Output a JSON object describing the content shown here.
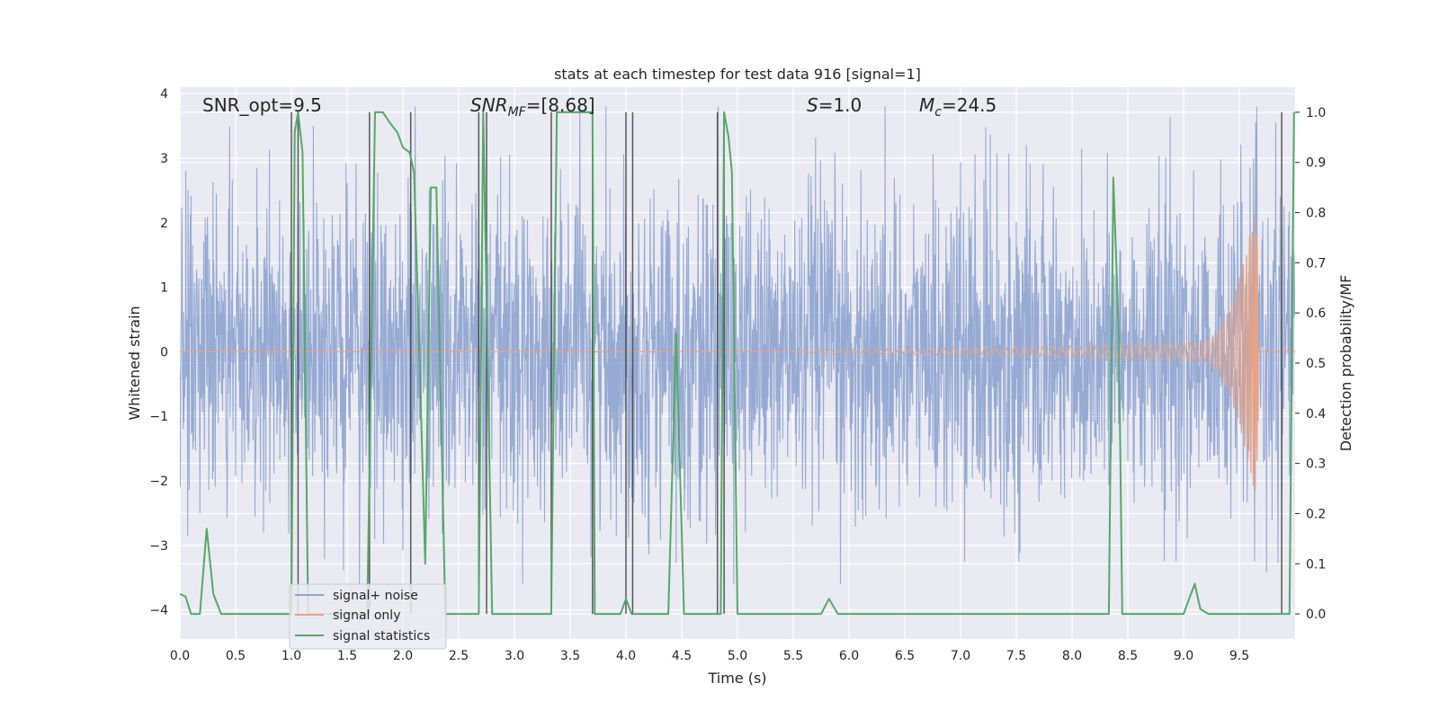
{
  "chart_data": {
    "type": "line",
    "title": "stats at each timestep for test data 916 [signal=1]",
    "xlabel": "Time (s)",
    "ylabel_left": "Whitened strain",
    "ylabel_right": "Detection probability/MF",
    "xlim": [
      0.0,
      10.0
    ],
    "ylim_left": [
      -4.45,
      4.1
    ],
    "ylim_right": [
      -0.05,
      1.05
    ],
    "x_ticks": [
      "0.0",
      "0.5",
      "1.0",
      "1.5",
      "2.0",
      "2.5",
      "3.0",
      "3.5",
      "4.0",
      "4.5",
      "5.0",
      "5.5",
      "6.0",
      "6.5",
      "7.0",
      "7.5",
      "8.0",
      "8.5",
      "9.0",
      "9.5"
    ],
    "y_ticks_left": [
      "4",
      "3",
      "2",
      "1",
      "0",
      "−1",
      "−2",
      "−3",
      "−4"
    ],
    "y_ticks_right": [
      "1.0",
      "0.9",
      "0.8",
      "0.7",
      "0.6",
      "0.5",
      "0.4",
      "0.3",
      "0.2",
      "0.1",
      "0.0"
    ],
    "grid": true,
    "legend_position": "lower-left",
    "annotations": {
      "snr_opt": "SNR_opt=9.5",
      "snr_mf_main": "SNR",
      "snr_mf_sub": "MF",
      "snr_mf_value": "=[8.68]",
      "s_main": "S",
      "s_value": "=1.0",
      "mc_main": "M",
      "mc_sub": "c",
      "mc_value": "=24.5"
    },
    "colors": {
      "noise": "#8da3cf",
      "signal": "#e8a385",
      "stats": "#55a868",
      "vlines": "#3d3d3d",
      "background": "#eaeaf2"
    },
    "series": [
      {
        "name": "signal+ noise",
        "axis": "left",
        "noise_envelope": {
          "typical_amplitude": 1.7,
          "peak_max": 3.8,
          "peak_min": -3.6
        }
      },
      {
        "name": "signal only",
        "axis": "left",
        "chirp": {
          "onset": 5.5,
          "merger": 9.67,
          "peak_amplitude": 2.15
        }
      },
      {
        "name": "signal statistics",
        "axis": "right",
        "x": [
          0.0,
          0.05,
          0.1,
          0.18,
          0.24,
          0.3,
          0.37,
          0.45,
          0.95,
          1.0,
          1.03,
          1.06,
          1.1,
          1.15,
          1.2,
          1.25,
          1.6,
          1.68,
          1.75,
          1.82,
          1.88,
          1.95,
          2.0,
          2.06,
          2.1,
          2.15,
          2.2,
          2.25,
          2.3,
          2.38,
          2.6,
          2.68,
          2.72,
          2.8,
          3.3,
          3.33,
          3.38,
          3.45,
          3.55,
          3.65,
          3.7,
          3.72,
          3.75,
          3.95,
          4.0,
          4.05,
          4.12,
          4.38,
          4.45,
          4.52,
          4.8,
          4.85,
          4.88,
          4.92,
          4.95,
          5.0,
          5.05,
          5.5,
          5.62,
          5.75,
          5.82,
          5.9,
          6.0,
          8.3,
          8.33,
          8.37,
          8.42,
          8.45,
          8.5,
          9.0,
          9.05,
          9.1,
          9.15,
          9.22,
          9.5,
          9.88,
          9.95,
          9.99
        ],
        "y": [
          0.04,
          0.035,
          0.0,
          0.0,
          0.17,
          0.04,
          0.0,
          0.0,
          0.0,
          0.0,
          0.96,
          1.0,
          0.92,
          0.0,
          0.0,
          0.0,
          0.0,
          0.0,
          1.0,
          1.0,
          0.98,
          0.96,
          0.93,
          0.92,
          0.88,
          0.5,
          0.1,
          0.85,
          0.85,
          0.0,
          0.0,
          0.0,
          1.0,
          0.0,
          0.0,
          0.0,
          1.0,
          1.0,
          1.0,
          1.0,
          1.0,
          0.0,
          0.0,
          0.0,
          0.03,
          0.0,
          0.0,
          0.0,
          0.56,
          0.0,
          0.0,
          0.0,
          1.0,
          0.95,
          0.88,
          0.0,
          0.0,
          0.0,
          0.0,
          0.0,
          0.03,
          0.0,
          0.0,
          0.0,
          0.0,
          0.87,
          0.55,
          0.0,
          0.0,
          0.0,
          0.03,
          0.06,
          0.01,
          0.0,
          0.0,
          0.0,
          0.0,
          1.0
        ]
      }
    ],
    "vertical_lines": [
      1.0,
      1.06,
      1.7,
      2.07,
      2.68,
      2.75,
      3.33,
      3.7,
      4.0,
      4.06,
      4.82,
      4.88,
      9.88
    ]
  }
}
